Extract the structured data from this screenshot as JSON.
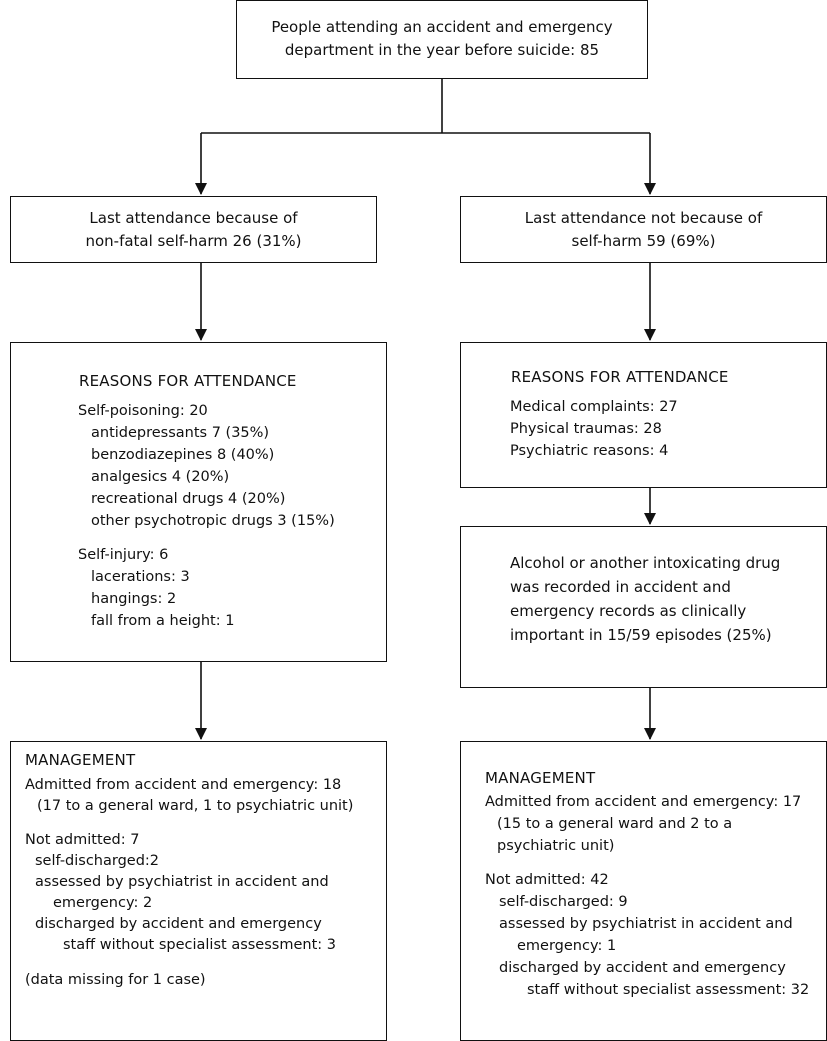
{
  "top": {
    "lines": [
      "People attending an accident and emergency",
      "department in the year before suicide: 85"
    ]
  },
  "left": {
    "attendance": {
      "lines": [
        "Last attendance because of",
        "non-fatal self-harm 26 (31%)"
      ]
    },
    "reasons": {
      "heading": "REASONS FOR ATTENDANCE",
      "self_poisoning": "Self-poisoning: 20",
      "poisoning_items": [
        "antidepressants 7 (35%)",
        "benzodiazepines 8 (40%)",
        "analgesics 4 (20%)",
        "recreational drugs 4 (20%)",
        "other psychotropic drugs 3 (15%)"
      ],
      "self_injury": "Self-injury: 6",
      "injury_items": [
        "lacerations: 3",
        "hangings: 2",
        "fall from a height: 1"
      ]
    },
    "management": {
      "heading": "MANAGEMENT",
      "admitted": "Admitted from accident and emergency: 18",
      "admitted_detail": "(17 to a general ward, 1 to psychiatric unit)",
      "not_admitted": "Not admitted: 7",
      "items": [
        "self-discharged:2",
        "assessed by psychiatrist in accident and",
        "emergency: 2",
        "discharged by accident and emergency",
        "staff without specialist assessment: 3"
      ],
      "note": "(data missing for 1 case)"
    }
  },
  "right": {
    "attendance": {
      "lines": [
        "Last attendance not because of",
        "self-harm 59 (69%)"
      ]
    },
    "reasons": {
      "heading": "REASONS FOR ATTENDANCE",
      "items": [
        "Medical complaints: 27",
        "Physical traumas: 28",
        "Psychiatric reasons: 4"
      ]
    },
    "alcohol": {
      "lines": [
        "Alcohol or another intoxicating drug",
        "was recorded in accident and",
        "emergency records as clinically",
        "important in 15/59 episodes (25%)"
      ]
    },
    "management": {
      "heading": "MANAGEMENT",
      "admitted": "Admitted from accident and emergency: 17",
      "admitted_detail": [
        "(15 to a general ward and 2 to a",
        "psychiatric unit)"
      ],
      "not_admitted": "Not admitted: 42",
      "items": [
        "self-discharged: 9",
        "assessed by psychiatrist in accident and",
        "emergency: 1",
        "discharged by accident and emergency",
        "staff without specialist assessment: 32"
      ]
    }
  }
}
